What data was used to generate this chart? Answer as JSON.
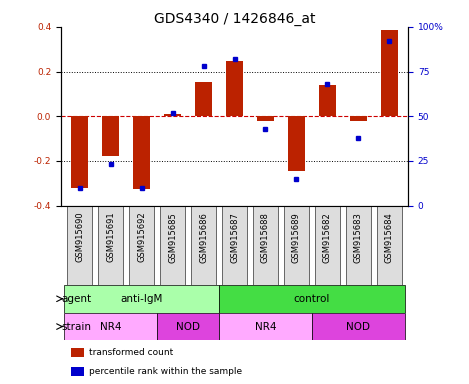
{
  "title": "GDS4340 / 1426846_at",
  "samples": [
    "GSM915690",
    "GSM915691",
    "GSM915692",
    "GSM915685",
    "GSM915686",
    "GSM915687",
    "GSM915688",
    "GSM915689",
    "GSM915682",
    "GSM915683",
    "GSM915684"
  ],
  "red_bars": [
    -0.32,
    -0.18,
    -0.325,
    0.01,
    0.155,
    0.245,
    -0.02,
    -0.245,
    0.14,
    -0.02,
    0.385
  ],
  "blue_dots": [
    10,
    23,
    10,
    52,
    78,
    82,
    43,
    15,
    68,
    38,
    92
  ],
  "ylim": [
    -0.4,
    0.4
  ],
  "y_ticks_left": [
    -0.4,
    -0.2,
    0.0,
    0.2,
    0.4
  ],
  "y_ticks_right": [
    0,
    25,
    50,
    75,
    100
  ],
  "bar_color": "#bb2200",
  "dot_color": "#0000cc",
  "zero_line_color": "#cc0000",
  "grid_color": "#000000",
  "agent_groups": [
    {
      "label": "anti-IgM",
      "start": 0,
      "end": 5,
      "color": "#aaffaa"
    },
    {
      "label": "control",
      "start": 5,
      "end": 11,
      "color": "#44dd44"
    }
  ],
  "strain_groups": [
    {
      "label": "NR4",
      "start": 0,
      "end": 3,
      "color": "#ffaaff"
    },
    {
      "label": "NOD",
      "start": 3,
      "end": 5,
      "color": "#dd44dd"
    },
    {
      "label": "NR4",
      "start": 5,
      "end": 8,
      "color": "#ffaaff"
    },
    {
      "label": "NOD",
      "start": 8,
      "end": 11,
      "color": "#dd44dd"
    }
  ],
  "legend_red_label": "transformed count",
  "legend_blue_label": "percentile rank within the sample",
  "xlabel_agent": "agent",
  "xlabel_strain": "strain",
  "title_fontsize": 10,
  "tick_fontsize": 6.5,
  "label_fontsize": 7.5,
  "sample_box_color": "#dddddd",
  "sample_fontsize": 6
}
